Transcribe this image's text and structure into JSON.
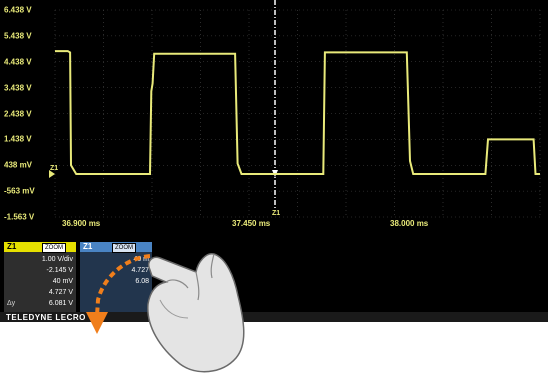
{
  "colors": {
    "trace": "#e9ea7a",
    "grid": "#4a4a4a",
    "cursor": "#ffffff",
    "channel_tab": "#e6e000",
    "zoom_tab": "#4a84c4",
    "gesture_arrow": "#f07e1b"
  },
  "axes": {
    "y_ticks": [
      "6.438 V",
      "5.438 V",
      "4.438 V",
      "3.438 V",
      "2.438 V",
      "1.438 V",
      "438 mV",
      "-563 mV",
      "-1.563 V"
    ],
    "x_ticks": [
      "36.900 ms",
      "37.450 ms",
      "38.000 ms"
    ],
    "cursor_marker": "Z1",
    "trace_marker": "Z1"
  },
  "chart_data": {
    "type": "line",
    "x_unit": "ms",
    "y_unit": "V",
    "xlim": [
      36.859,
      38.37
    ],
    "ylim": [
      -1.563,
      6.438
    ],
    "series": [
      {
        "points": [
          [
            36.859,
            4.85
          ],
          [
            36.899,
            4.85
          ],
          [
            36.906,
            4.8
          ],
          [
            36.909,
            0.438
          ],
          [
            36.925,
            0.1
          ],
          [
            37.155,
            0.1
          ],
          [
            37.159,
            3.3
          ],
          [
            37.163,
            3.6
          ],
          [
            37.168,
            4.75
          ],
          [
            37.42,
            4.75
          ],
          [
            37.428,
            0.5
          ],
          [
            37.44,
            0.1
          ],
          [
            37.695,
            0.1
          ],
          [
            37.7,
            4.8
          ],
          [
            37.955,
            4.8
          ],
          [
            37.965,
            0.6
          ],
          [
            37.975,
            0.1
          ],
          [
            38.2,
            0.1
          ],
          [
            38.208,
            1.438
          ],
          [
            38.35,
            1.438
          ],
          [
            38.356,
            0.1
          ],
          [
            38.37,
            0.1
          ]
        ]
      }
    ]
  },
  "panel": {
    "channel_tab": "Z1",
    "channel_subtab": "ZOOM",
    "zoom_tab": "Z1",
    "zoom_subtab": "ZOOM",
    "readouts": [
      {
        "label": "",
        "left": "1.00 V/div",
        "right": ""
      },
      {
        "label": "",
        "left": "-2.145 V",
        "right": ""
      },
      {
        "label": "",
        "left": "40 mV",
        "right": "40 m"
      },
      {
        "label": "",
        "left": "4.727 V",
        "right": "4.727"
      },
      {
        "label": "Δy",
        "left": "6.081 V",
        "right": "6.08"
      }
    ]
  },
  "brand": "TELEDYNE LECRO",
  "gesture": {
    "icon": "hand-swipe-icon",
    "arrow": "arrow-down-icon"
  }
}
